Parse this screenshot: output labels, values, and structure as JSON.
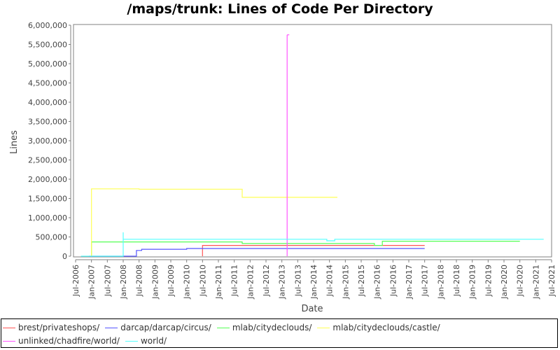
{
  "chart_data": {
    "type": "line",
    "title": "/maps/trunk: Lines of Code Per Directory",
    "xlabel": "Date",
    "ylabel": "Lines",
    "ylim": [
      0,
      6000000
    ],
    "xlim": [
      "Jul-2006",
      "Jul-2021"
    ],
    "grid": false,
    "legend_position": "bottom",
    "y_ticks": [
      "0",
      "500,000",
      "1,000,000",
      "1,500,000",
      "2,000,000",
      "2,500,000",
      "3,000,000",
      "3,500,000",
      "4,000,000",
      "4,500,000",
      "5,000,000",
      "5,500,000",
      "6,000,000"
    ],
    "x_ticks": [
      "Jul-2006",
      "Jan-2007",
      "Jul-2007",
      "Jan-2008",
      "Jul-2008",
      "Jan-2009",
      "Jul-2009",
      "Jan-2010",
      "Jul-2010",
      "Jan-2011",
      "Jul-2011",
      "Jan-2012",
      "Jul-2012",
      "Jan-2013",
      "Jul-2013",
      "Jan-2014",
      "Jul-2014",
      "Jan-2015",
      "Jul-2015",
      "Jan-2016",
      "Jul-2016",
      "Jan-2017",
      "Jul-2017",
      "Jan-2018",
      "Jul-2018",
      "Jan-2019",
      "Jul-2019",
      "Jan-2020",
      "Jul-2020",
      "Jan-2021",
      "Jul-2021"
    ],
    "series": [
      {
        "name": "brest/privateshops/",
        "color": "#ff5555",
        "points": [
          [
            "2010-07",
            0
          ],
          [
            "2010-07",
            280000
          ],
          [
            "2015-12",
            280000
          ],
          [
            "2017-07",
            280000
          ]
        ]
      },
      {
        "name": "darcap/darcap/circus/",
        "color": "#5555ff",
        "points": [
          [
            "2006-12",
            0
          ],
          [
            "2008-06",
            0
          ],
          [
            "2008-06",
            150000
          ],
          [
            "2008-08",
            150000
          ],
          [
            "2008-08",
            180000
          ],
          [
            "2010-01",
            180000
          ],
          [
            "2010-01",
            200000
          ],
          [
            "2017-07",
            200000
          ]
        ]
      },
      {
        "name": "mlab/citydeclouds/",
        "color": "#55ff55",
        "points": [
          [
            "2007-01",
            0
          ],
          [
            "2007-01",
            370000
          ],
          [
            "2011-10",
            370000
          ],
          [
            "2011-10",
            330000
          ],
          [
            "2015-12",
            330000
          ],
          [
            "2015-12",
            280000
          ],
          [
            "2016-03",
            280000
          ],
          [
            "2016-03",
            390000
          ],
          [
            "2020-07",
            390000
          ]
        ]
      },
      {
        "name": "mlab/citydeclouds/castle/",
        "color": "#ffff55",
        "points": [
          [
            "2007-01",
            0
          ],
          [
            "2007-01",
            1750000
          ],
          [
            "2008-07",
            1750000
          ],
          [
            "2008-07",
            1740000
          ],
          [
            "2011-10",
            1740000
          ],
          [
            "2011-10",
            1530000
          ],
          [
            "2014-10",
            1530000
          ]
        ]
      },
      {
        "name": "unlinked/chadfire/world/",
        "color": "#ff55ff",
        "points": [
          [
            "2013-03",
            0
          ],
          [
            "2013-03",
            5750000
          ],
          [
            "2013-03",
            5750000
          ]
        ]
      },
      {
        "name": "world/",
        "color": "#55ffff",
        "points": [
          [
            "2006-09",
            0
          ],
          [
            "2008-01",
            0
          ],
          [
            "2008-01",
            620000
          ],
          [
            "2008-01",
            440000
          ],
          [
            "2014-06",
            440000
          ],
          [
            "2014-06",
            400000
          ],
          [
            "2014-09",
            400000
          ],
          [
            "2014-09",
            440000
          ],
          [
            "2021-04",
            440000
          ]
        ]
      }
    ]
  },
  "legend": {
    "items": [
      {
        "label": "brest/privateshops/",
        "color": "#ff5555"
      },
      {
        "label": "darcap/darcap/circus/",
        "color": "#5555ff"
      },
      {
        "label": "mlab/citydeclouds/",
        "color": "#55ff55"
      },
      {
        "label": "mlab/citydeclouds/castle/",
        "color": "#ffff55"
      },
      {
        "label": "unlinked/chadfire/world/",
        "color": "#ff55ff"
      },
      {
        "label": "world/",
        "color": "#55ffff"
      }
    ]
  }
}
